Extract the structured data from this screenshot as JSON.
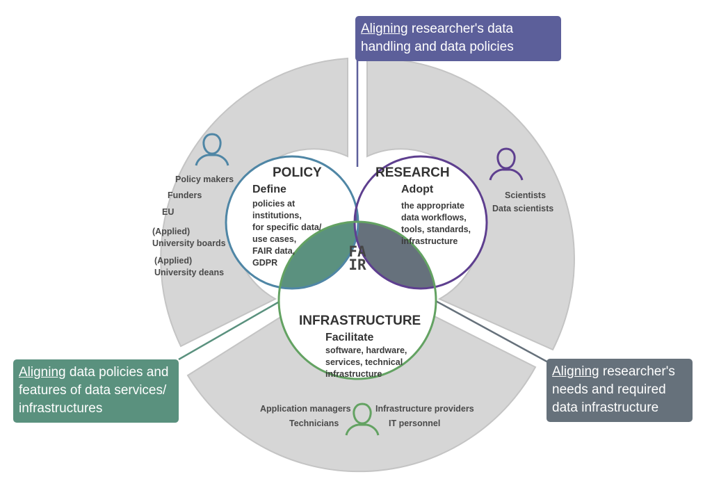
{
  "colors": {
    "policy": "#4f86a5",
    "research": "#5e3f8f",
    "infrastructure": "#63a262",
    "overlap_policy_research": "#5d5d9c",
    "overlap_policy_infrastructure": "#5b917f",
    "overlap_research_infrastructure": "#66717c",
    "outer_ring": "#d6d6d6"
  },
  "policy": {
    "title": "POLICY",
    "verb": "Define",
    "lines": [
      "policies at",
      "institutions,",
      "for specific data/",
      "use cases,",
      "FAIR data,",
      "GDPR"
    ],
    "actors": [
      "Policy makers",
      "Funders",
      "EU",
      "(Applied)",
      "University boards",
      "(Applied)",
      "University deans"
    ]
  },
  "research": {
    "title": "RESEARCH",
    "verb": "Adopt",
    "lines": [
      "the appropriate",
      "data workflows,",
      "tools, standards,",
      "infrastructure"
    ],
    "actors": [
      "Scientists",
      "Data scientists"
    ]
  },
  "infrastructure": {
    "title": "INFRASTRUCTURE",
    "verb": "Facilitate",
    "lines": [
      "software, hardware,",
      "services, technical",
      "infrastructure"
    ],
    "actors": [
      "Application managers",
      "Technicians",
      "Infrastructure providers",
      "IT personnel"
    ]
  },
  "center": {
    "line1": "FA",
    "line2": "IR"
  },
  "callouts": {
    "research": {
      "keyword": "Aligning",
      "rest": " researcher's data handling and data policies"
    },
    "policy_infrastructure": {
      "keyword": "Aligning",
      "rest": " data policies and features of data services/ infrastructures"
    },
    "research_infrastructure": {
      "keyword": "Aligning",
      "rest": " researcher's needs and required data infrastructure"
    }
  }
}
